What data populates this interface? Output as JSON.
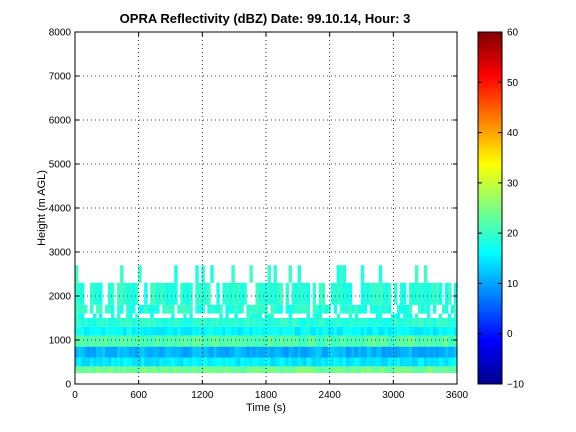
{
  "chart_data": {
    "type": "heatmap",
    "title": "OPRA Reflectivity (dBZ)  Date: 99.10.14, Hour: 3",
    "xlabel": "Time (s)",
    "ylabel": "Height (m AGL)",
    "xlim": [
      0,
      3600
    ],
    "ylim": [
      0,
      8000
    ],
    "x_ticks": [
      "0",
      "600",
      "1200",
      "1800",
      "2400",
      "3000",
      "3600"
    ],
    "y_ticks": [
      "0",
      "1000",
      "2000",
      "3000",
      "4000",
      "5000",
      "6000",
      "7000",
      "8000"
    ],
    "grid": true,
    "colorbar": {
      "colormap": "jet",
      "range": [
        -10,
        60
      ],
      "ticks": [
        "−10",
        "0",
        "10",
        "20",
        "30",
        "40",
        "50",
        "60"
      ]
    },
    "layers": [
      {
        "bottom": 250,
        "top": 400,
        "value": 24
      },
      {
        "bottom": 400,
        "top": 600,
        "value": 15
      },
      {
        "bottom": 600,
        "top": 850,
        "value": 11
      },
      {
        "bottom": 850,
        "top": 1100,
        "value": 22
      },
      {
        "bottom": 1100,
        "top": 1300,
        "value": 16
      },
      {
        "bottom": 1300,
        "top": 1500,
        "value": 19
      },
      {
        "bottom": 1500,
        "top": 1600,
        "value": 18,
        "coverage": 0.3
      },
      {
        "bottom": 1600,
        "top": 1800,
        "value": 19,
        "coverage": 0.75
      },
      {
        "bottom": 1800,
        "top": 2300,
        "value": 19,
        "coverage": 0.65
      },
      {
        "bottom": 2300,
        "top": 2700,
        "value": 19,
        "coverage": 0.15
      }
    ]
  }
}
